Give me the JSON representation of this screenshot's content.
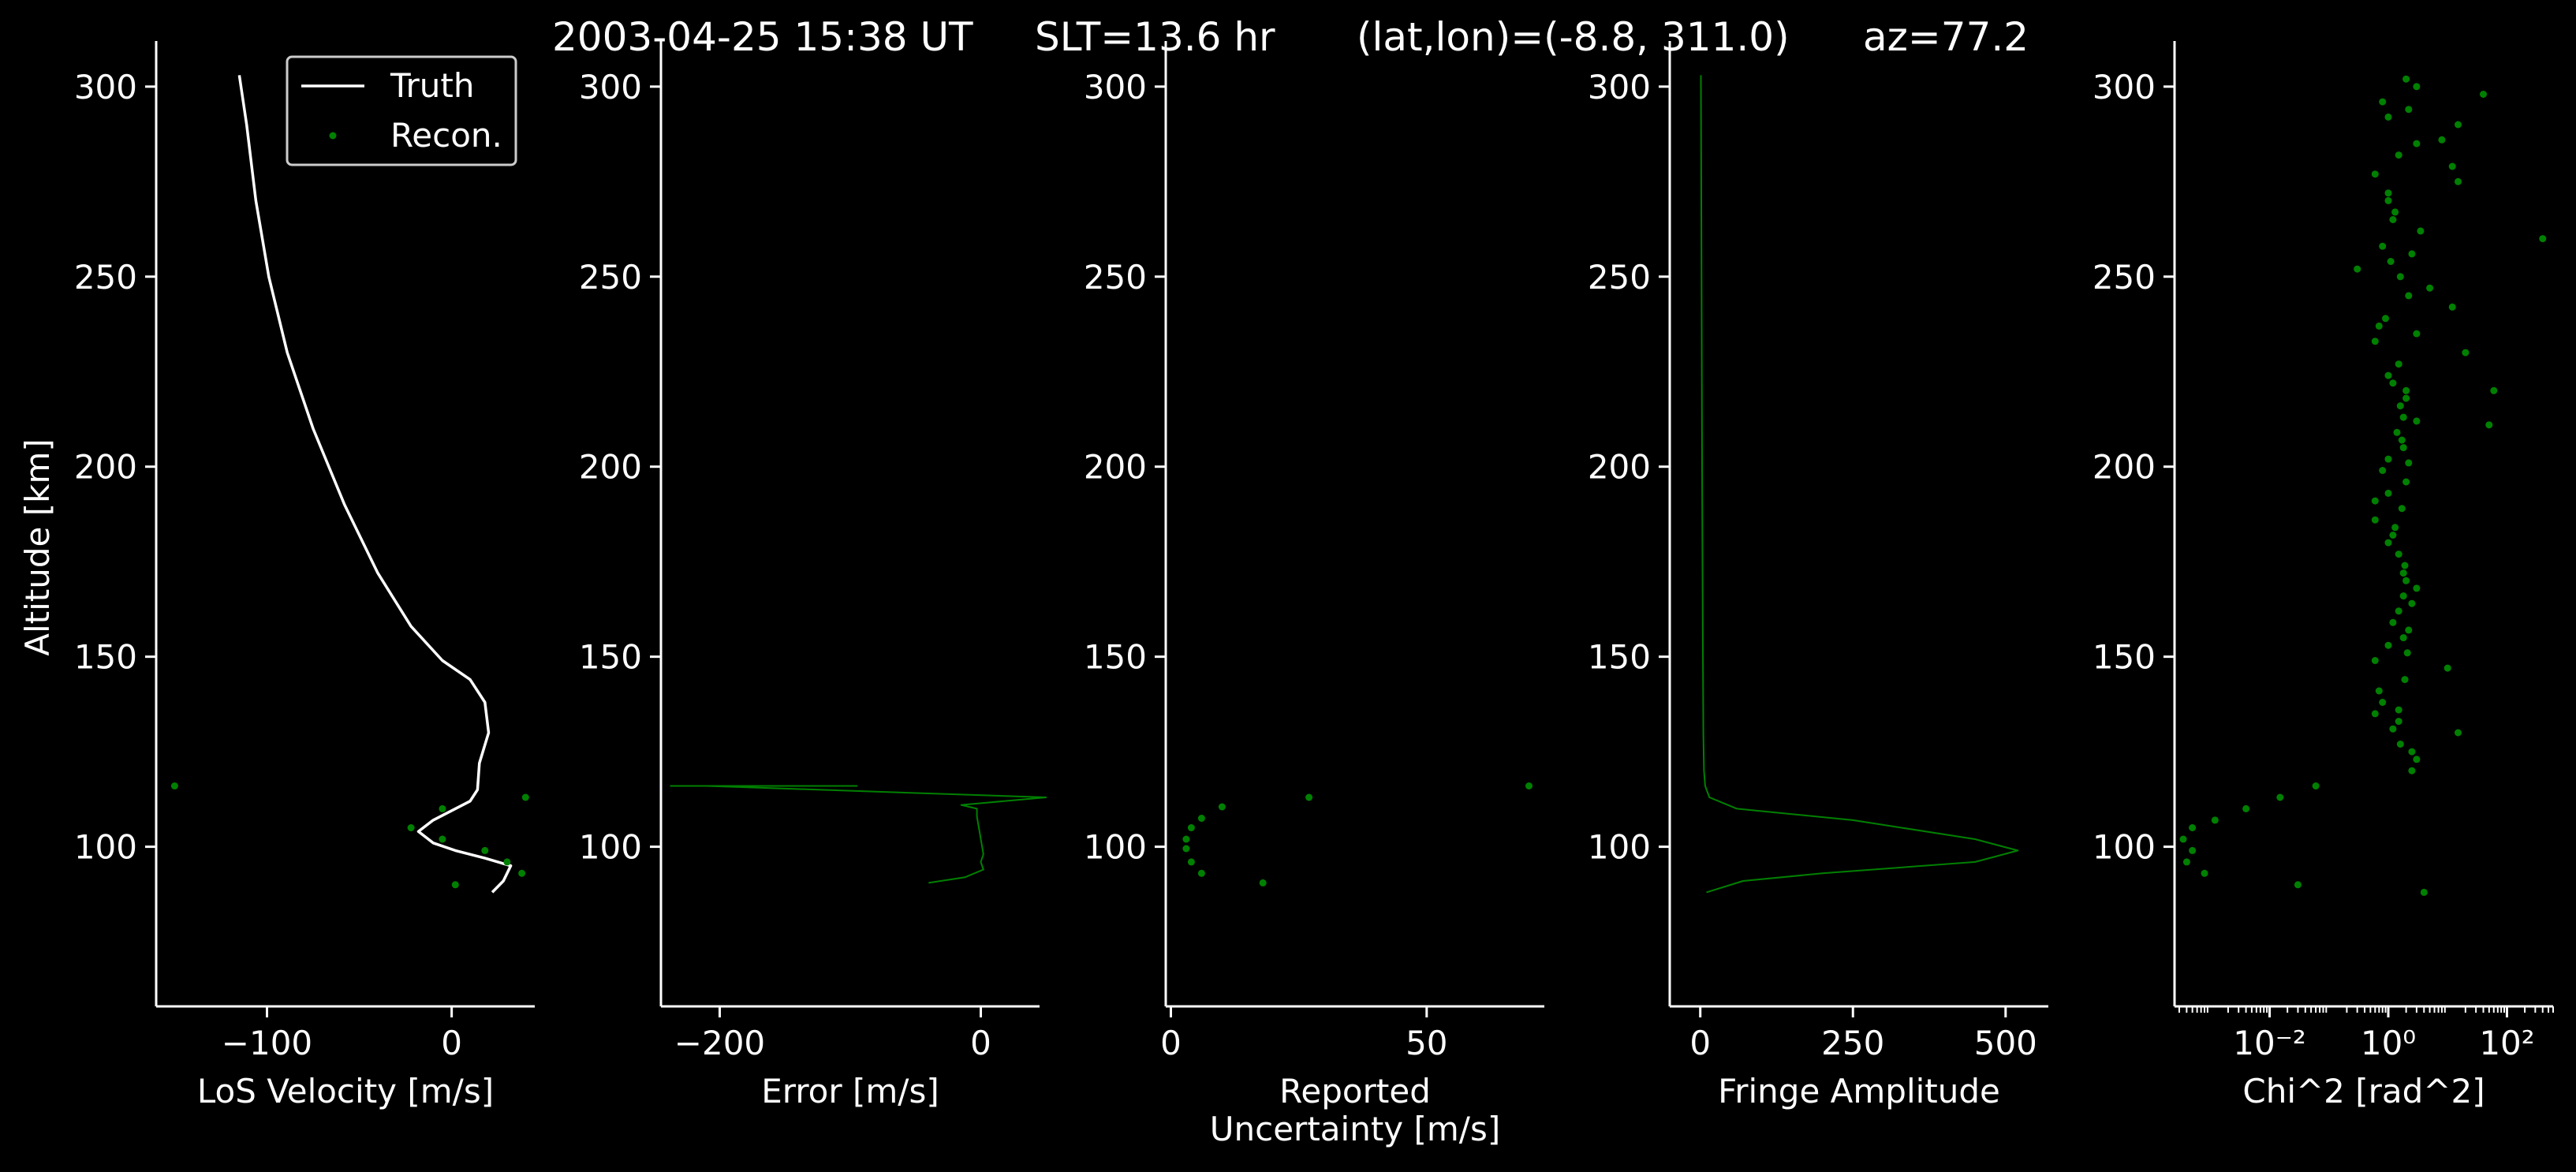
{
  "suptitle": {
    "date": "2003-04-25 15:38 UT",
    "slt": "SLT=13.6 hr",
    "latlon": "(lat,lon)=(-8.8, 311.0)",
    "az": "az=77.2"
  },
  "colors": {
    "truth": "#ffffff",
    "recon": "#008000",
    "background": "#000000",
    "axes": "#ffffff"
  },
  "chart_data": [
    {
      "type": "line",
      "xlabel": "LoS Velocity [m/s]",
      "ylabel": "Altitude [km]",
      "xlim": [
        -160,
        45
      ],
      "ylim": [
        58,
        312
      ],
      "xticks": [
        -100,
        0
      ],
      "xtick_labels": [
        "−100",
        "0"
      ],
      "yticks": [
        100,
        150,
        200,
        250,
        300
      ],
      "ytick_labels": [
        "100",
        "150",
        "200",
        "250",
        "300"
      ],
      "legend": {
        "position": "upper right",
        "entries": [
          "Truth",
          "Recon."
        ]
      },
      "series": [
        {
          "name": "Truth",
          "style": "line",
          "points": [
            [
              -115,
              303
            ],
            [
              -111,
              290
            ],
            [
              -106,
              270
            ],
            [
              -99,
              250
            ],
            [
              -89,
              230
            ],
            [
              -75,
              210
            ],
            [
              -58,
              190
            ],
            [
              -40,
              172
            ],
            [
              -22,
              158
            ],
            [
              -5,
              149
            ],
            [
              10,
              144
            ],
            [
              18,
              138
            ],
            [
              20,
              130
            ],
            [
              15,
              122
            ],
            [
              14,
              115
            ],
            [
              10,
              112
            ],
            [
              -10,
              107
            ],
            [
              -18,
              104
            ],
            [
              -10,
              101
            ],
            [
              2,
              99
            ],
            [
              18,
              97
            ],
            [
              32,
              95
            ],
            [
              28,
              91
            ],
            [
              22,
              88
            ]
          ]
        },
        {
          "name": "Recon.",
          "style": "scatter",
          "points": [
            [
              -150,
              116
            ],
            [
              40,
              113
            ],
            [
              -5,
              110
            ],
            [
              -22,
              105
            ],
            [
              -5,
              102
            ],
            [
              18,
              99
            ],
            [
              30,
              96
            ],
            [
              38,
              93
            ],
            [
              2,
              90
            ]
          ]
        }
      ]
    },
    {
      "type": "line",
      "xlabel": "Error [m/s]",
      "xlim": [
        -245,
        45
      ],
      "ylim": [
        58,
        312
      ],
      "xticks": [
        -200,
        0
      ],
      "xtick_labels": [
        "−200",
        "0"
      ],
      "yticks": [
        100,
        150,
        200,
        250,
        300
      ],
      "ytick_labels": [
        "100",
        "150",
        "200",
        "250",
        "300"
      ],
      "series": [
        {
          "name": "",
          "style": "line",
          "points": [
            [
              -238,
              116
            ],
            [
              -95,
              116
            ],
            [
              -210,
              116
            ],
            [
              50,
              113
            ],
            [
              -15,
              111
            ],
            [
              -3,
              110
            ],
            [
              -3,
              108
            ],
            [
              -2,
              106
            ],
            [
              -1,
              104
            ],
            [
              0,
              102
            ],
            [
              1,
              100
            ],
            [
              2,
              98
            ],
            [
              0,
              96
            ],
            [
              2,
              94
            ],
            [
              -12,
              92
            ],
            [
              -40,
              90.5
            ]
          ]
        }
      ]
    },
    {
      "type": "scatter",
      "xlabel": "Reported\nUncertainty [m/s]",
      "xlim": [
        -1,
        73
      ],
      "ylim": [
        58,
        312
      ],
      "xticks": [
        0,
        50
      ],
      "xtick_labels": [
        "0",
        "50"
      ],
      "yticks": [
        100,
        150,
        200,
        250,
        300
      ],
      "ytick_labels": [
        "100",
        "150",
        "200",
        "250",
        "300"
      ],
      "series": [
        {
          "name": "",
          "style": "scatter",
          "points": [
            [
              70,
              116
            ],
            [
              27,
              113
            ],
            [
              10,
              110.5
            ],
            [
              6,
              107.5
            ],
            [
              4,
              105
            ],
            [
              3,
              102
            ],
            [
              3,
              99.5
            ],
            [
              4,
              96
            ],
            [
              6,
              93
            ],
            [
              18,
              90.5
            ]
          ]
        }
      ]
    },
    {
      "type": "line",
      "xlabel": "Fringe Amplitude",
      "xlim": [
        -50,
        570
      ],
      "ylim": [
        58,
        312
      ],
      "xticks": [
        0,
        250,
        500
      ],
      "xtick_labels": [
        "0",
        "250",
        "500"
      ],
      "yticks": [
        100,
        150,
        200,
        250,
        300
      ],
      "ytick_labels": [
        "100",
        "150",
        "200",
        "250",
        "300"
      ],
      "series": [
        {
          "name": "",
          "style": "line",
          "points": [
            [
              1,
              303
            ],
            [
              2,
              250
            ],
            [
              3,
              200
            ],
            [
              4,
              160
            ],
            [
              5,
              130
            ],
            [
              6,
              120
            ],
            [
              8,
              116
            ],
            [
              15,
              113
            ],
            [
              60,
              110
            ],
            [
              250,
              107
            ],
            [
              450,
              102
            ],
            [
              520,
              99
            ],
            [
              450,
              96
            ],
            [
              200,
              93
            ],
            [
              70,
              91
            ],
            [
              10,
              88
            ]
          ]
        }
      ]
    },
    {
      "type": "scatter",
      "xlabel": "Chi^2 [rad^2]",
      "x_scale": "log",
      "xlim": [
        0.00025,
        600
      ],
      "ylim": [
        58,
        312
      ],
      "xticks": [
        0.01,
        1,
        100
      ],
      "xtick_labels": [
        "10⁻²",
        "10⁰",
        "10²"
      ],
      "yticks": [
        100,
        150,
        200,
        250,
        300
      ],
      "ytick_labels": [
        "100",
        "150",
        "200",
        "250",
        "300"
      ],
      "series": [
        {
          "name": "",
          "style": "scatter",
          "points": [
            [
              2,
              302
            ],
            [
              3,
              300
            ],
            [
              40,
              298
            ],
            [
              0.8,
              296
            ],
            [
              1,
              292
            ],
            [
              2.2,
              294
            ],
            [
              15,
              290
            ],
            [
              8,
              286
            ],
            [
              3,
              285
            ],
            [
              1.5,
              282
            ],
            [
              12,
              279
            ],
            [
              0.6,
              277
            ],
            [
              15,
              275
            ],
            [
              1,
              272
            ],
            [
              1,
              270
            ],
            [
              1.3,
              267
            ],
            [
              1.2,
              265
            ],
            [
              3.5,
              262
            ],
            [
              400,
              260
            ],
            [
              0.8,
              258
            ],
            [
              2.5,
              256
            ],
            [
              1.1,
              254
            ],
            [
              0.3,
              252
            ],
            [
              1.6,
              250
            ],
            [
              5,
              247
            ],
            [
              2.2,
              245
            ],
            [
              12,
              242
            ],
            [
              0.9,
              239
            ],
            [
              0.7,
              237
            ],
            [
              3,
              235
            ],
            [
              0.6,
              233
            ],
            [
              20,
              230
            ],
            [
              1.5,
              227
            ],
            [
              1,
              224
            ],
            [
              1.2,
              222
            ],
            [
              2,
              220
            ],
            [
              60,
              220
            ],
            [
              2,
              218
            ],
            [
              1.6,
              216
            ],
            [
              1.8,
              213
            ],
            [
              3,
              212
            ],
            [
              50,
              211
            ],
            [
              1.4,
              209
            ],
            [
              1.7,
              207
            ],
            [
              1.8,
              205
            ],
            [
              1,
              202
            ],
            [
              2.2,
              201
            ],
            [
              0.8,
              199
            ],
            [
              2,
              196
            ],
            [
              1,
              193
            ],
            [
              0.6,
              191
            ],
            [
              1.7,
              189
            ],
            [
              0.6,
              186
            ],
            [
              1.3,
              184
            ],
            [
              1.2,
              182
            ],
            [
              1,
              180
            ],
            [
              1.5,
              177
            ],
            [
              1.9,
              174
            ],
            [
              1.8,
              172
            ],
            [
              2,
              170
            ],
            [
              3,
              168
            ],
            [
              1.8,
              166
            ],
            [
              2.5,
              164
            ],
            [
              1.5,
              162
            ],
            [
              1.2,
              159
            ],
            [
              2.2,
              157
            ],
            [
              1.8,
              155
            ],
            [
              1,
              153
            ],
            [
              2.1,
              151
            ],
            [
              0.6,
              149
            ],
            [
              10,
              147
            ],
            [
              1.9,
              144
            ],
            [
              0.7,
              141
            ],
            [
              0.8,
              138
            ],
            [
              1.5,
              136
            ],
            [
              0.6,
              135
            ],
            [
              1.5,
              133
            ],
            [
              1.2,
              131
            ],
            [
              15,
              130
            ],
            [
              1.6,
              127
            ],
            [
              2.5,
              125
            ],
            [
              3,
              123
            ],
            [
              2.5,
              120
            ],
            [
              0.06,
              116
            ],
            [
              0.015,
              113
            ],
            [
              0.004,
              110
            ],
            [
              0.0012,
              107
            ],
            [
              0.0005,
              105
            ],
            [
              0.00035,
              102
            ],
            [
              0.0005,
              99
            ],
            [
              0.0004,
              96
            ],
            [
              0.0008,
              93
            ],
            [
              0.03,
              90
            ],
            [
              4,
              88
            ]
          ]
        }
      ]
    }
  ]
}
